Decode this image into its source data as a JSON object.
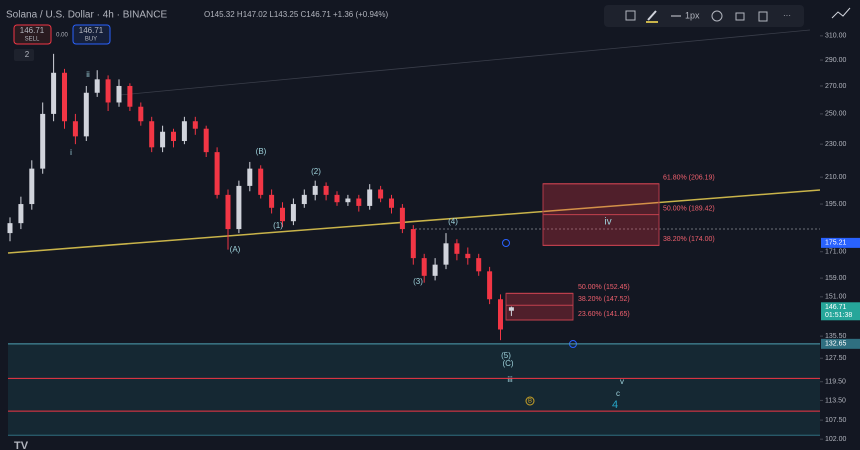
{
  "chart_data": {
    "type": "candlestick",
    "title": "Solana / U.S. Dollar · 4h · BINANCE",
    "ohlc_text": "O145.32 H147.02 L143.25 C146.71 +1.36 (+0.94%)",
    "sell_button": {
      "price": "146.71",
      "label": "SELL"
    },
    "spread": "0.00",
    "buy_button": {
      "price": "146.71",
      "label": "BUY"
    },
    "collapse_count": "2",
    "toolbar_width": "1px",
    "countdown": "01:51:38",
    "log_scale": true,
    "ylim": [
      99,
      342.2
    ],
    "yticks": [
      {
        "value": 310,
        "label": "310.00"
      },
      {
        "value": 290,
        "label": "290.00"
      },
      {
        "value": 270,
        "label": "270.00"
      },
      {
        "value": 250,
        "label": "250.00"
      },
      {
        "value": 230,
        "label": "230.00"
      },
      {
        "value": 210,
        "label": "210.00"
      },
      {
        "value": 195,
        "label": "195.00"
      },
      {
        "value": 171,
        "label": "171.00"
      },
      {
        "value": 159,
        "label": "159.00"
      },
      {
        "value": 151,
        "label": "151.00"
      },
      {
        "value": 135.5,
        "label": "135.50"
      },
      {
        "value": 127.5,
        "label": "127.50"
      },
      {
        "value": 119.5,
        "label": "119.50"
      },
      {
        "value": 113.5,
        "label": "113.50"
      },
      {
        "value": 107.5,
        "label": "107.50"
      },
      {
        "value": 102,
        "label": "102.00"
      }
    ],
    "up_color": "#d1d4dc",
    "down_color": "#f23645",
    "open": [
      180,
      185,
      195,
      215,
      250,
      280,
      245,
      235,
      265,
      275,
      258,
      270,
      255,
      245,
      228,
      238,
      232,
      245,
      240,
      225,
      200,
      182,
      205,
      215,
      200,
      193,
      186,
      195,
      200,
      205,
      200,
      196,
      198,
      194,
      203,
      198,
      193,
      182,
      168,
      160,
      165,
      175,
      170,
      168,
      162,
      150,
      145.32
    ],
    "high": [
      188,
      199,
      220,
      258,
      295,
      283,
      250,
      270,
      282,
      278,
      275,
      272,
      258,
      248,
      242,
      240,
      248,
      248,
      242,
      228,
      203,
      208,
      219,
      217,
      203,
      196,
      198,
      203,
      208,
      207,
      202,
      200,
      200,
      206,
      205,
      200,
      195,
      184,
      170,
      168,
      180,
      177,
      173,
      170,
      164,
      152,
      147.02
    ],
    "low": [
      176,
      182,
      192,
      212,
      245,
      240,
      230,
      232,
      262,
      252,
      255,
      252,
      242,
      225,
      225,
      228,
      230,
      236,
      222,
      198,
      172,
      180,
      202,
      198,
      190,
      183,
      184,
      193,
      197,
      197,
      194,
      194,
      191,
      192,
      196,
      190,
      180,
      165,
      157,
      158,
      163,
      167,
      165,
      160,
      148,
      134,
      143.25
    ],
    "close": [
      185,
      195,
      215,
      250,
      280,
      245,
      235,
      265,
      275,
      258,
      270,
      255,
      245,
      228,
      238,
      232,
      245,
      240,
      225,
      200,
      182,
      205,
      215,
      200,
      193,
      186,
      195,
      200,
      205,
      200,
      196,
      198,
      194,
      203,
      198,
      193,
      182,
      168,
      160,
      165,
      175,
      170,
      168,
      162,
      150,
      138,
      146.71
    ],
    "price_tags": [
      {
        "value": 175.21,
        "color": "#2962ff"
      },
      {
        "value": 146.71,
        "color": "#26a69a"
      },
      {
        "value": 132.65,
        "color": "#2f6f80"
      }
    ],
    "hlines": [
      {
        "value": 120.6,
        "color": "#f23645"
      },
      {
        "value": 110.2,
        "color": "#f23645"
      },
      {
        "value": 103.1,
        "color": "#2f6f80"
      }
    ],
    "fib_upper": [
      {
        "value": 206.19,
        "label": "61.80% (206.19)"
      },
      {
        "value": 189.42,
        "label": "50.00% (189.42)"
      },
      {
        "value": 174.0,
        "label": "38.20% (174.00)"
      }
    ],
    "fib_lower": [
      {
        "value": 152.45,
        "label": "50.00% (152.45)"
      },
      {
        "value": 147.52,
        "label": "38.20% (147.52)"
      },
      {
        "value": 141.65,
        "label": "23.60% (141.65)"
      }
    ],
    "annotations": [
      "ii",
      "i",
      "(B)",
      "(A)",
      "(1)",
      "(2)",
      "(3)",
      "(4)",
      "(5)",
      "(C)",
      "iii",
      "iv",
      "v",
      "c",
      "4",
      "B"
    ]
  }
}
